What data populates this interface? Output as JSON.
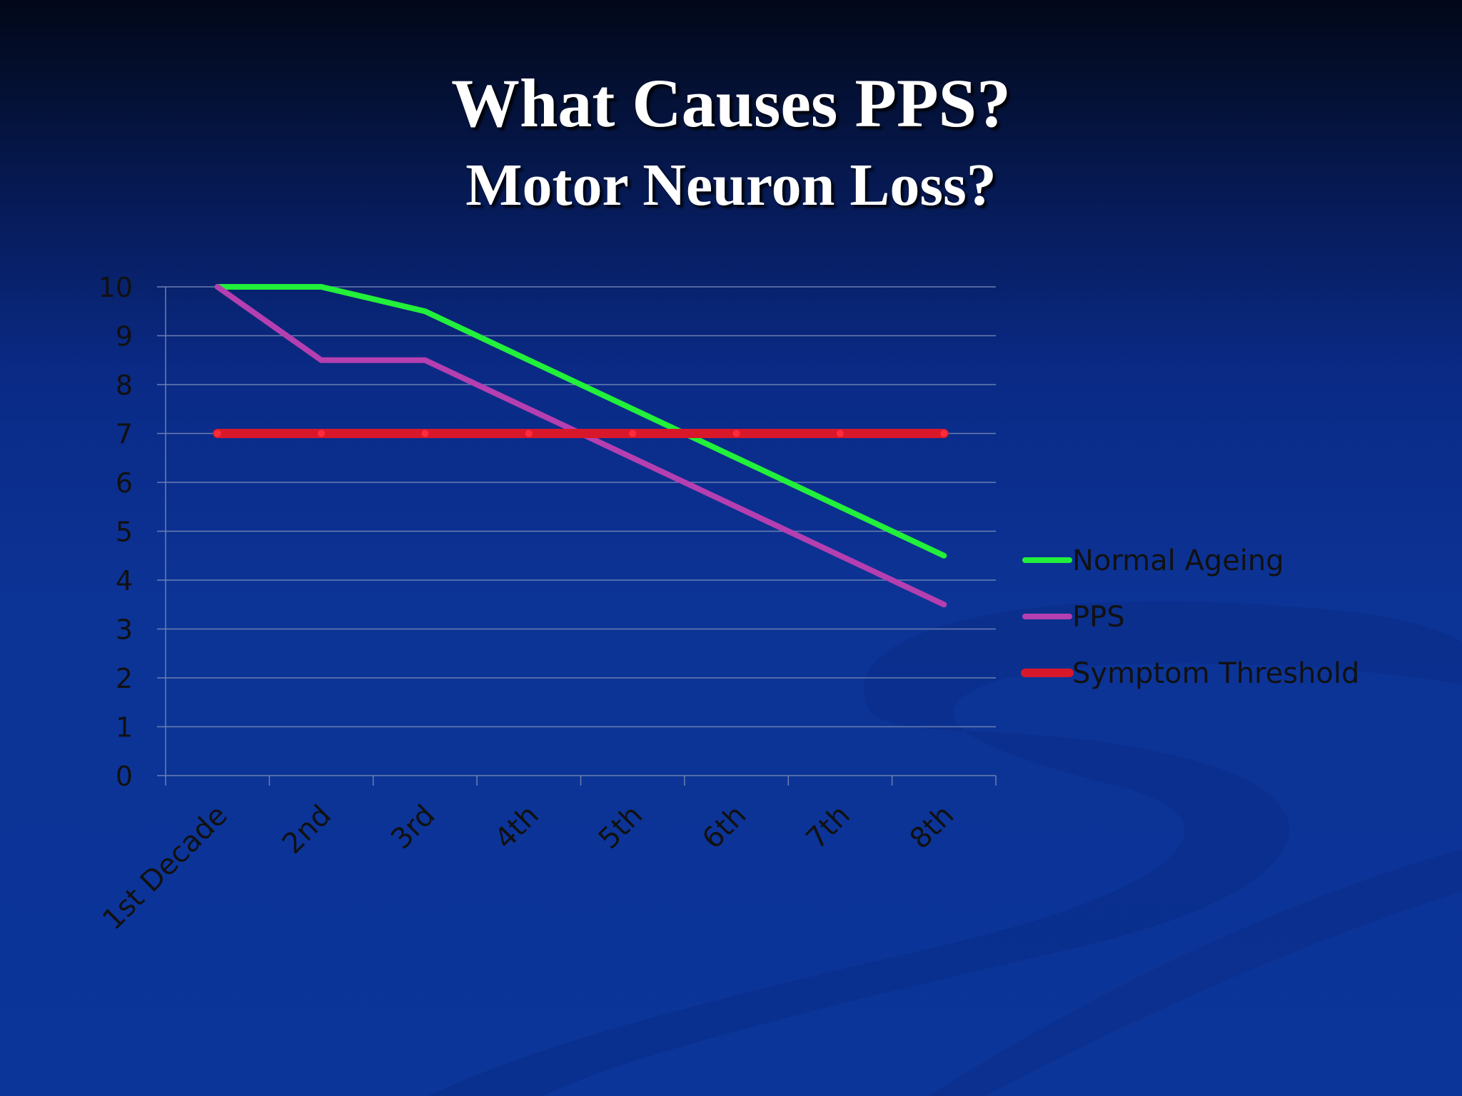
{
  "slide": {
    "title_line_1": "What Causes PPS?",
    "title_line_2": "Motor Neuron Loss?"
  },
  "colors": {
    "background_top": "#020818",
    "background_bottom": "#0b3599",
    "gridline": "#6a7fb0",
    "normal_ageing": "#22f03a",
    "pps": "#b53fb0",
    "symptom_threshold": "#d8182a",
    "text": "#111111"
  },
  "chart_data": {
    "type": "line",
    "title": "",
    "xlabel": "",
    "ylabel": "",
    "categories": [
      "1st Decade",
      "2nd",
      "3rd",
      "4th",
      "5th",
      "6th",
      "7th",
      "8th"
    ],
    "ylim": [
      0,
      10
    ],
    "yticks": [
      0,
      1,
      2,
      3,
      4,
      5,
      6,
      7,
      8,
      9,
      10
    ],
    "grid": true,
    "legend_position": "right",
    "series": [
      {
        "name": "Normal Ageing",
        "color": "#22f03a",
        "values": [
          10,
          10,
          9.5,
          8.5,
          7.5,
          6.5,
          5.5,
          4.5
        ]
      },
      {
        "name": "PPS",
        "color": "#b53fb0",
        "values": [
          10,
          8.5,
          8.5,
          7.5,
          6.5,
          5.5,
          4.5,
          3.5
        ]
      },
      {
        "name": "Symptom Threshold",
        "color": "#d8182a",
        "values": [
          7,
          7,
          7,
          7,
          7,
          7,
          7,
          7
        ]
      }
    ]
  }
}
